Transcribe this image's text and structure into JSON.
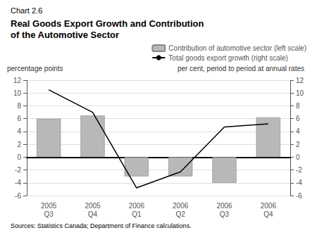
{
  "chart_data": {
    "type": "bar",
    "title": "Real Goods Export Growth and Contribution\nof the Automotive Sector",
    "annotations": [
      "Chart 2.6",
      "Sources: Statistics Canada; Department of Finance calculations."
    ],
    "ylabel": "percentage points",
    "y2label": "per cent, period to period at annual rates",
    "categories": [
      "2005\nQ3",
      "2005\nQ4",
      "2006\nQ1",
      "2006\nQ2",
      "2006\nQ3",
      "2006\nQ4"
    ],
    "series": [
      {
        "name": "Contribution of automotive sector (left scale)",
        "type": "bar",
        "color": "#b8b8b8",
        "axis": "y",
        "values": [
          6.0,
          6.5,
          -3.0,
          -3.0,
          -4.0,
          6.2
        ]
      },
      {
        "name": "Total goods export growth (right scale)",
        "type": "line",
        "color": "#000000",
        "axis": "y2",
        "values": [
          10.5,
          7.0,
          -4.8,
          -2.3,
          4.7,
          5.2
        ]
      }
    ],
    "ylim": [
      -6,
      12
    ],
    "yticks": [
      -6,
      -4,
      -2,
      0,
      2,
      4,
      6,
      8,
      10,
      12
    ],
    "y2lim": [
      -6,
      12
    ],
    "y2ticks": [
      -6,
      -4,
      -2,
      0,
      2,
      4,
      6,
      8,
      10,
      12
    ],
    "grid": true,
    "legend": "upper right"
  }
}
